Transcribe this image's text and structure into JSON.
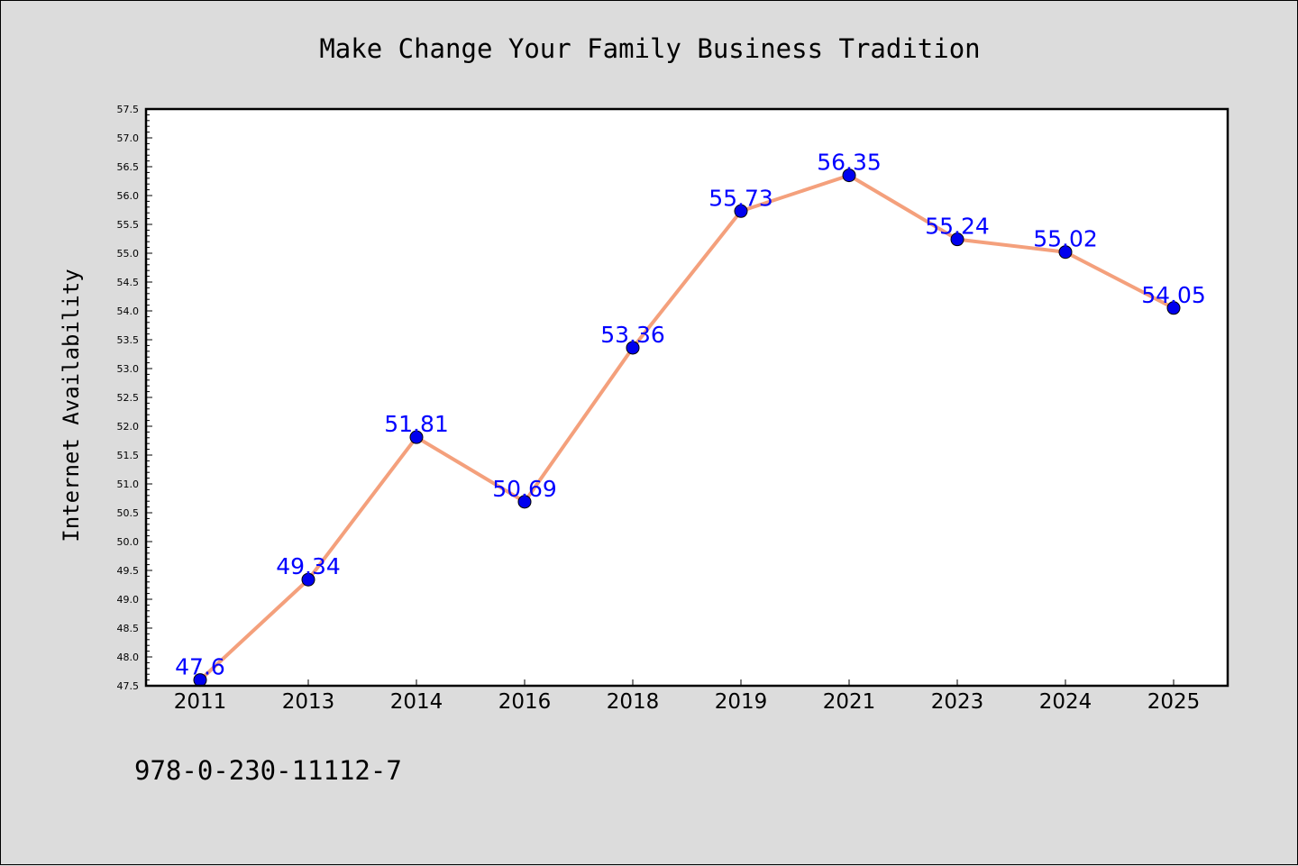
{
  "chart_data": {
    "type": "line",
    "title": "Make Change Your Family Business Tradition",
    "xlabel": "",
    "ylabel": "Internet Availability",
    "categories": [
      "2011",
      "2013",
      "2014",
      "2016",
      "2018",
      "2019",
      "2021",
      "2023",
      "2024",
      "2025"
    ],
    "series": [
      {
        "values": [
          47.6,
          49.34,
          51.81,
          50.69,
          53.36,
          55.73,
          56.35,
          55.24,
          55.02,
          54.05
        ],
        "labels": [
          "47.6",
          "49.34",
          "51.81",
          "50.69",
          "53.36",
          "55.73",
          "56.35",
          "55.24",
          "55.02",
          "54.05"
        ],
        "line_color": "#f4a07c",
        "marker_color": "#0000ee",
        "label_color": "#0000ff"
      }
    ],
    "ylim": [
      47.5,
      57.5
    ],
    "yticks": [
      "47.5",
      "48.0",
      "48.5",
      "49.0",
      "49.5",
      "50.0",
      "50.5",
      "51.0",
      "51.5",
      "52.0",
      "52.5",
      "53.0",
      "53.5",
      "54.0",
      "54.5",
      "55.0",
      "55.5",
      "56.0",
      "56.5",
      "57.0",
      "57.5"
    ],
    "grid": false,
    "legend": "none"
  },
  "footer": {
    "isbn": "978-0-230-11112-7"
  },
  "colors": {
    "background": "#dcdcdc",
    "plot_background": "#ffffff"
  }
}
